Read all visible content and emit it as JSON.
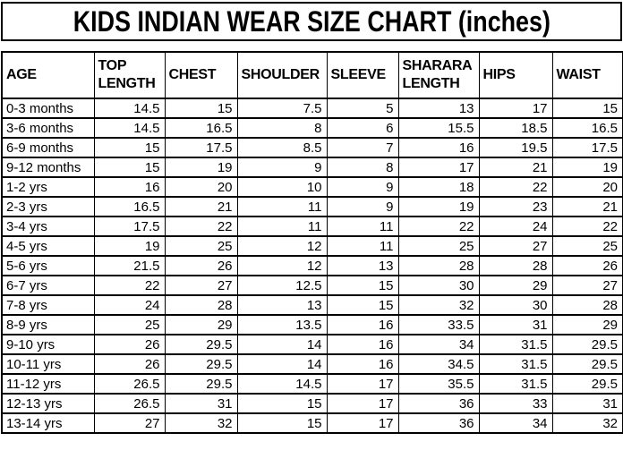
{
  "chart_data": {
    "type": "table",
    "title": "KIDS INDIAN WEAR SIZE CHART (inches)",
    "columns": [
      "AGE",
      "TOP LENGTH",
      "CHEST",
      "SHOULDER",
      "SLEEVE",
      "SHARARA LENGTH",
      "HIPS",
      "WAIST"
    ],
    "rows": [
      [
        "0-3 months",
        "14.5",
        "15",
        "7.5",
        "5",
        "13",
        "17",
        "15"
      ],
      [
        "3-6 months",
        "14.5",
        "16.5",
        "8",
        "6",
        "15.5",
        "18.5",
        "16.5"
      ],
      [
        "6-9 months",
        "15",
        "17.5",
        "8.5",
        "7",
        "16",
        "19.5",
        "17.5"
      ],
      [
        "9-12 months",
        "15",
        "19",
        "9",
        "8",
        "17",
        "21",
        "19"
      ],
      [
        "1-2 yrs",
        "16",
        "20",
        "10",
        "9",
        "18",
        "22",
        "20"
      ],
      [
        "2-3 yrs",
        "16.5",
        "21",
        "11",
        "9",
        "19",
        "23",
        "21"
      ],
      [
        "3-4 yrs",
        "17.5",
        "22",
        "11",
        "11",
        "22",
        "24",
        "22"
      ],
      [
        "4-5 yrs",
        "19",
        "25",
        "12",
        "11",
        "25",
        "27",
        "25"
      ],
      [
        "5-6 yrs",
        "21.5",
        "26",
        "12",
        "13",
        "28",
        "28",
        "26"
      ],
      [
        "6-7 yrs",
        "22",
        "27",
        "12.5",
        "15",
        "30",
        "29",
        "27"
      ],
      [
        "7-8 yrs",
        "24",
        "28",
        "13",
        "15",
        "32",
        "30",
        "28"
      ],
      [
        "8-9 yrs",
        "25",
        "29",
        "13.5",
        "16",
        "33.5",
        "31",
        "29"
      ],
      [
        "9-10 yrs",
        "26",
        "29.5",
        "14",
        "16",
        "34",
        "31.5",
        "29.5"
      ],
      [
        "10-11 yrs",
        "26",
        "29.5",
        "14",
        "16",
        "34.5",
        "31.5",
        "29.5"
      ],
      [
        "11-12 yrs",
        "26.5",
        "29.5",
        "14.5",
        "17",
        "35.5",
        "31.5",
        "29.5"
      ],
      [
        "12-13 yrs",
        "26.5",
        "31",
        "15",
        "17",
        "36",
        "33",
        "31"
      ],
      [
        "13-14 yrs",
        "27",
        "32",
        "15",
        "17",
        "36",
        "34",
        "32"
      ]
    ]
  },
  "colors": {
    "border": "#000000",
    "text": "#000000",
    "background": "#ffffff"
  }
}
